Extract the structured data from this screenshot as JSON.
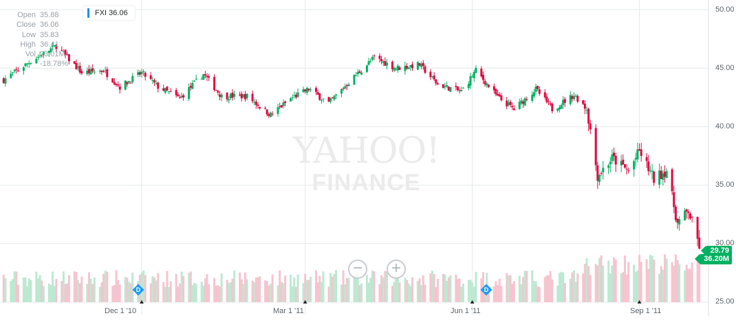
{
  "chart_data": {
    "type": "candlestick",
    "ticker": "FXI",
    "ticker_label": "FXI 36.06",
    "ohlc_panel": [
      {
        "label": "Open",
        "value": "35.88"
      },
      {
        "label": "Close",
        "value": "36.06"
      },
      {
        "label": "Low",
        "value": "35.83"
      },
      {
        "label": "High",
        "value": "36.41"
      },
      {
        "label": "Vol",
        "value": "23.01M"
      },
      {
        "label": "",
        "value": "-18.78%"
      }
    ],
    "last_price": "29.79",
    "last_volume": "36.20M",
    "y_ticks": [
      "50.00",
      "45.00",
      "40.00",
      "35.00",
      "30.00",
      "25.00"
    ],
    "y_range": [
      25,
      50
    ],
    "x_ticks": [
      "Dec 1 '10",
      "Mar 1 '11",
      "Jun 1 '11",
      "Sep 1 '11"
    ],
    "grid": true,
    "dividend_markers": [
      {
        "label": "D",
        "near": "Dec 1 '10"
      },
      {
        "label": "D",
        "near": "Jun 1 '11"
      }
    ],
    "watermark": {
      "line1": "YAHOO!",
      "line2": "FINANCE"
    },
    "colors": {
      "up": "#00b060",
      "down": "#e1063f",
      "vol_up": "#bde8d2",
      "vol_down": "#f6c4cf",
      "grid": "#e6e8ea",
      "last": "#00b060"
    },
    "close_path": [
      {
        "date": "2010-09-16",
        "close": 44.0
      },
      {
        "date": "2010-10-01",
        "close": 45.6
      },
      {
        "date": "2010-10-15",
        "close": 46.9
      },
      {
        "date": "2010-10-29",
        "close": 44.6
      },
      {
        "date": "2010-11-10",
        "close": 44.8
      },
      {
        "date": "2010-11-19",
        "close": 43.4
      },
      {
        "date": "2010-12-01",
        "close": 44.6
      },
      {
        "date": "2010-12-10",
        "close": 43.4
      },
      {
        "date": "2010-12-22",
        "close": 42.4
      },
      {
        "date": "2011-01-04",
        "close": 44.5
      },
      {
        "date": "2011-01-14",
        "close": 42.6
      },
      {
        "date": "2011-01-28",
        "close": 42.6
      },
      {
        "date": "2011-02-10",
        "close": 41.0
      },
      {
        "date": "2011-02-22",
        "close": 42.5
      },
      {
        "date": "2011-03-03",
        "close": 43.2
      },
      {
        "date": "2011-03-14",
        "close": 42.0
      },
      {
        "date": "2011-03-25",
        "close": 43.8
      },
      {
        "date": "2011-04-08",
        "close": 45.9
      },
      {
        "date": "2011-04-20",
        "close": 45.0
      },
      {
        "date": "2011-05-03",
        "close": 45.3
      },
      {
        "date": "2011-05-13",
        "close": 43.6
      },
      {
        "date": "2011-05-26",
        "close": 43.0
      },
      {
        "date": "2011-06-03",
        "close": 44.8
      },
      {
        "date": "2011-06-15",
        "close": 42.5
      },
      {
        "date": "2011-06-24",
        "close": 41.5
      },
      {
        "date": "2011-07-06",
        "close": 43.2
      },
      {
        "date": "2011-07-15",
        "close": 41.5
      },
      {
        "date": "2011-07-27",
        "close": 42.7
      },
      {
        "date": "2011-08-03",
        "close": 41.6
      },
      {
        "date": "2011-08-09",
        "close": 35.8
      },
      {
        "date": "2011-08-17",
        "close": 37.3
      },
      {
        "date": "2011-08-26",
        "close": 36.2
      },
      {
        "date": "2011-09-01",
        "close": 37.9
      },
      {
        "date": "2011-09-09",
        "close": 35.5
      },
      {
        "date": "2011-09-16",
        "close": 36.3
      },
      {
        "date": "2011-09-22",
        "close": 31.7
      },
      {
        "date": "2011-09-28",
        "close": 32.8
      },
      {
        "date": "2011-10-04",
        "close": 29.79
      }
    ]
  }
}
